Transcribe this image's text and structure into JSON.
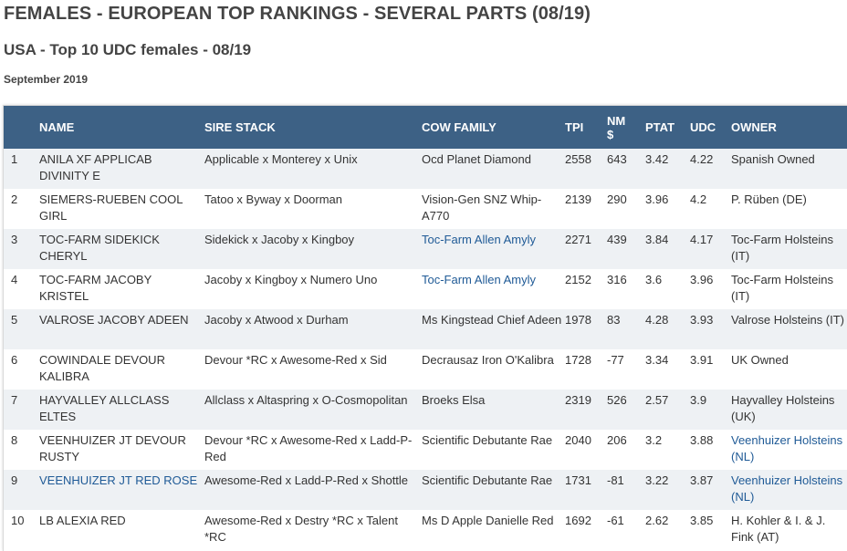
{
  "title": "FEMALES - EUROPEAN TOP RANKINGS - SEVERAL PARTS (08/19)",
  "subtitle": "USA - Top 10 UDC females - 08/19",
  "date": "September 2019",
  "colors": {
    "header_bg": "#3d6185",
    "stripe": "#eef1f4",
    "link": "#1f5a96"
  },
  "table": {
    "headers": {
      "rank": "",
      "name": "NAME",
      "sire_stack": "SIRE STACK",
      "cow_family": "COW FAMILY",
      "tpi": "TPI",
      "nm_line1": "NM",
      "nm_line2": "$",
      "ptat": "PTAT",
      "udc": "UDC",
      "owner": "OWNER"
    },
    "rows": [
      {
        "rank": "1",
        "name": "ANILA XF APPLICAB DIVINITY E",
        "sire_stack": "Applicable x Monterey x Unix",
        "cow_family": "Ocd Planet Diamond",
        "tpi": "2558",
        "nm": "643",
        "ptat": "3.42",
        "udc": "4.22",
        "owner": "Spanish Owned"
      },
      {
        "rank": "2",
        "name": "SIEMERS-RUEBEN COOL GIRL",
        "sire_stack": "Tatoo x Byway x Doorman",
        "cow_family": "Vision-Gen SNZ Whip-A770",
        "tpi": "2139",
        "nm": "290",
        "ptat": "3.96",
        "udc": "4.2",
        "owner": "P. Rüben (DE)"
      },
      {
        "rank": "3",
        "name": "TOC-FARM SIDEKICK CHERYL",
        "sire_stack": "Sidekick x Jacoby x Kingboy",
        "cow_family": "Toc-Farm Allen Amyly",
        "tpi": "2271",
        "nm": "439",
        "ptat": "3.84",
        "udc": "4.17",
        "owner": "Toc-Farm Holsteins (IT)"
      },
      {
        "rank": "4",
        "name": "TOC-FARM JACOBY KRISTEL",
        "sire_stack": "Jacoby x Kingboy x Numero Uno",
        "cow_family": "Toc-Farm Allen Amyly",
        "tpi": "2152",
        "nm": "316",
        "ptat": "3.6",
        "udc": "3.96",
        "owner": "Toc-Farm Holsteins (IT)"
      },
      {
        "rank": "5",
        "name": "VALROSE JACOBY ADEEN",
        "sire_stack": "Jacoby x Atwood x Durham",
        "cow_family": "Ms Kingstead Chief Adeen",
        "tpi": "1978",
        "nm": "83",
        "ptat": "4.28",
        "udc": "3.93",
        "owner": "Valrose Holsteins (IT)"
      },
      {
        "rank": "6",
        "name": "COWINDALE DEVOUR KALIBRA",
        "sire_stack": "Devour *RC x Awesome-Red x Sid",
        "cow_family": "Decrausaz Iron O'Kalibra",
        "tpi": "1728",
        "nm": "-77",
        "ptat": "3.34",
        "udc": "3.91",
        "owner": "UK Owned"
      },
      {
        "rank": "7",
        "name": "HAYVALLEY ALLCLASS ELTES",
        "sire_stack": "Allclass x Altaspring x O-Cosmopolitan",
        "cow_family": "Broeks Elsa",
        "tpi": "2319",
        "nm": "526",
        "ptat": "2.57",
        "udc": "3.9",
        "owner": "Hayvalley Holsteins (UK)"
      },
      {
        "rank": "8",
        "name": "VEENHUIZER JT DEVOUR RUSTY",
        "sire_stack": "Devour *RC x Awesome-Red x Ladd-P-Red",
        "cow_family": "Scientific Debutante Rae",
        "tpi": "2040",
        "nm": "206",
        "ptat": "3.2",
        "udc": "3.88",
        "owner": "Veenhuizer Holsteins (NL)"
      },
      {
        "rank": "9",
        "name": "VEENHUIZER JT RED ROSE",
        "sire_stack": "Awesome-Red x Ladd-P-Red x Shottle",
        "cow_family": "Scientific Debutante Rae",
        "tpi": "1731",
        "nm": "-81",
        "ptat": "3.22",
        "udc": "3.87",
        "owner": "Veenhuizer Holsteins (NL)"
      },
      {
        "rank": "10",
        "name": "LB ALEXIA RED",
        "sire_stack": "Awesome-Red x Destry *RC x Talent *RC",
        "cow_family": "Ms D Apple Danielle Red",
        "tpi": "1692",
        "nm": "-61",
        "ptat": "2.62",
        "udc": "3.85",
        "owner": "H. Kohler & I. & J. Fink (AT)"
      }
    ]
  }
}
